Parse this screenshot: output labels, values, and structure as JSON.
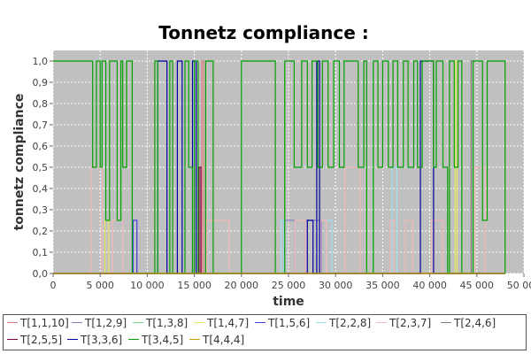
{
  "chart_data": {
    "type": "line",
    "title": "Tonnetz compliance :",
    "xlabel": "time",
    "ylabel": "tonnetz compliance",
    "xlim": [
      0,
      50000
    ],
    "ylim": [
      0,
      1.05
    ],
    "grid": true,
    "background": "#c0c0c0",
    "x_ticks": [
      0,
      5000,
      10000,
      15000,
      20000,
      25000,
      30000,
      35000,
      40000,
      45000,
      50000
    ],
    "x_tick_labels": [
      "0",
      "5 000",
      "10 000",
      "15 000",
      "20 000",
      "25 000",
      "30 000",
      "35 000",
      "40 000",
      "45 000",
      "50 000"
    ],
    "y_ticks": [
      0,
      0.1,
      0.2,
      0.3,
      0.4,
      0.5,
      0.6,
      0.7,
      0.8,
      0.9,
      1.0
    ],
    "y_tick_labels": [
      "0,0",
      "0,1",
      "0,2",
      "0,3",
      "0,4",
      "0,5",
      "0,6",
      "0,7",
      "0,8",
      "0,9",
      "1,0"
    ],
    "legend_position": "bottom",
    "series": [
      {
        "name": "T[1,1,10]",
        "color": "#e08080",
        "points": [
          [
            0,
            0
          ],
          [
            15800,
            0
          ],
          [
            15800,
            1.0
          ],
          [
            16000,
            1.0
          ],
          [
            16000,
            0
          ],
          [
            48000,
            0
          ]
        ]
      },
      {
        "name": "T[1,2,9]",
        "color": "#8080c0",
        "points": [
          [
            0,
            0
          ],
          [
            24500,
            0
          ],
          [
            24500,
            0.25
          ],
          [
            25700,
            0.25
          ],
          [
            25700,
            0
          ],
          [
            26800,
            0
          ],
          [
            26800,
            0.25
          ],
          [
            28500,
            0.25
          ],
          [
            28500,
            0
          ],
          [
            48000,
            0
          ]
        ]
      },
      {
        "name": "T[1,3,8]",
        "color": "#7ad07a",
        "points": [
          [
            0,
            0
          ],
          [
            48000,
            0
          ]
        ]
      },
      {
        "name": "T[1,4,7]",
        "color": "#e8e860",
        "points": [
          [
            0,
            0
          ],
          [
            5500,
            0
          ],
          [
            5500,
            0.25
          ],
          [
            5900,
            0.25
          ],
          [
            5900,
            0
          ],
          [
            42700,
            0
          ],
          [
            42700,
            1.0
          ],
          [
            42900,
            1.0
          ],
          [
            42900,
            0
          ],
          [
            48000,
            0
          ]
        ]
      },
      {
        "name": "T[1,5,6]",
        "color": "#4040e0",
        "points": [
          [
            0,
            0
          ],
          [
            8500,
            0
          ],
          [
            8500,
            0.25
          ],
          [
            8900,
            0.25
          ],
          [
            8900,
            0
          ],
          [
            48000,
            0
          ]
        ]
      },
      {
        "name": "T[2,2,8]",
        "color": "#a0e0f0",
        "points": [
          [
            0,
            0
          ],
          [
            24200,
            0
          ],
          [
            24200,
            0.25
          ],
          [
            24500,
            0.25
          ],
          [
            24500,
            0
          ],
          [
            29000,
            0
          ],
          [
            29000,
            0.25
          ],
          [
            29600,
            0.25
          ],
          [
            29600,
            0
          ],
          [
            36000,
            0
          ],
          [
            36000,
            0.5
          ],
          [
            36500,
            0.5
          ],
          [
            36500,
            0
          ],
          [
            48000,
            0
          ]
        ]
      },
      {
        "name": "T[2,3,7]",
        "color": "#f0b8b8",
        "points": [
          [
            0,
            0
          ],
          [
            4000,
            0
          ],
          [
            4000,
            0.5
          ],
          [
            5200,
            0.5
          ],
          [
            5200,
            0
          ],
          [
            6300,
            0
          ],
          [
            6300,
            0.25
          ],
          [
            7400,
            0.25
          ],
          [
            7400,
            0
          ],
          [
            16300,
            0
          ],
          [
            16300,
            0.25
          ],
          [
            18700,
            0.25
          ],
          [
            18700,
            0
          ],
          [
            25700,
            0
          ],
          [
            25700,
            0.25
          ],
          [
            26800,
            0.25
          ],
          [
            26800,
            0
          ],
          [
            28400,
            0
          ],
          [
            28400,
            0.25
          ],
          [
            29000,
            0.25
          ],
          [
            29000,
            0
          ],
          [
            31000,
            0
          ],
          [
            31000,
            0.5
          ],
          [
            32600,
            0.5
          ],
          [
            32600,
            0
          ],
          [
            35800,
            0
          ],
          [
            35800,
            0.25
          ],
          [
            36200,
            0.25
          ],
          [
            36200,
            0
          ],
          [
            37400,
            0
          ],
          [
            37400,
            0.25
          ],
          [
            38200,
            0.25
          ],
          [
            38200,
            0
          ],
          [
            40200,
            0
          ],
          [
            40200,
            0.25
          ],
          [
            41400,
            0.25
          ],
          [
            41400,
            0
          ],
          [
            44800,
            0
          ],
          [
            44800,
            0.5
          ],
          [
            45900,
            0.5
          ],
          [
            45900,
            0
          ],
          [
            48000,
            0
          ]
        ]
      },
      {
        "name": "T[2,4,6]",
        "color": "#808080",
        "points": [
          [
            0,
            0
          ],
          [
            44400,
            0
          ],
          [
            44400,
            1.0
          ],
          [
            44600,
            1.0
          ],
          [
            44600,
            0
          ],
          [
            48000,
            0
          ]
        ]
      },
      {
        "name": "T[2,5,5]",
        "color": "#800040",
        "points": [
          [
            0,
            0
          ],
          [
            15500,
            0
          ],
          [
            15500,
            0.5
          ],
          [
            15700,
            0.5
          ],
          [
            15700,
            0
          ],
          [
            48000,
            0
          ]
        ]
      },
      {
        "name": "T[3,3,6]",
        "color": "#0000a0",
        "points": [
          [
            0,
            0
          ],
          [
            11100,
            0
          ],
          [
            11100,
            1.0
          ],
          [
            12100,
            1.0
          ],
          [
            12100,
            0
          ],
          [
            13200,
            0
          ],
          [
            13200,
            1.0
          ],
          [
            13700,
            1.0
          ],
          [
            13700,
            0
          ],
          [
            14800,
            0
          ],
          [
            14800,
            1.0
          ],
          [
            15200,
            1.0
          ],
          [
            15200,
            0
          ],
          [
            27000,
            0
          ],
          [
            27000,
            0.25
          ],
          [
            27600,
            0.25
          ],
          [
            27600,
            0
          ],
          [
            28000,
            0
          ],
          [
            28000,
            1.0
          ],
          [
            28300,
            1.0
          ],
          [
            28300,
            0
          ],
          [
            39000,
            0
          ],
          [
            39000,
            1.0
          ],
          [
            40400,
            1.0
          ],
          [
            40400,
            0
          ],
          [
            48000,
            0
          ]
        ]
      },
      {
        "name": "T[3,4,5]",
        "color": "#00a000",
        "points": [
          [
            0,
            1.0
          ],
          [
            4200,
            1.0
          ],
          [
            4200,
            0.5
          ],
          [
            4600,
            0.5
          ],
          [
            4600,
            1.0
          ],
          [
            5000,
            1.0
          ],
          [
            5000,
            0.5
          ],
          [
            5200,
            0.5
          ],
          [
            5200,
            1.0
          ],
          [
            5600,
            1.0
          ],
          [
            5600,
            0.25
          ],
          [
            6000,
            0.25
          ],
          [
            6000,
            1.0
          ],
          [
            6800,
            1.0
          ],
          [
            6800,
            0.25
          ],
          [
            7200,
            0.25
          ],
          [
            7200,
            1.0
          ],
          [
            7400,
            1.0
          ],
          [
            7400,
            0.5
          ],
          [
            7800,
            0.5
          ],
          [
            7800,
            1.0
          ],
          [
            8400,
            1.0
          ],
          [
            8400,
            0
          ],
          [
            10800,
            0
          ],
          [
            10800,
            1.0
          ],
          [
            11100,
            1.0
          ],
          [
            11100,
            0
          ],
          [
            12400,
            0
          ],
          [
            12400,
            1.0
          ],
          [
            12700,
            1.0
          ],
          [
            12700,
            0
          ],
          [
            14000,
            0
          ],
          [
            14000,
            1.0
          ],
          [
            14400,
            1.0
          ],
          [
            14400,
            0.5
          ],
          [
            14800,
            0.5
          ],
          [
            14800,
            0
          ],
          [
            15000,
            0
          ],
          [
            15000,
            1.0
          ],
          [
            15400,
            1.0
          ],
          [
            15400,
            0
          ],
          [
            16200,
            0
          ],
          [
            16200,
            1.0
          ],
          [
            17000,
            1.0
          ],
          [
            17000,
            0
          ],
          [
            20000,
            0
          ],
          [
            20000,
            1.0
          ],
          [
            23600,
            1.0
          ],
          [
            23600,
            0
          ],
          [
            24600,
            0
          ],
          [
            24600,
            1.0
          ],
          [
            25600,
            1.0
          ],
          [
            25600,
            0.5
          ],
          [
            26400,
            0.5
          ],
          [
            26400,
            1.0
          ],
          [
            27000,
            1.0
          ],
          [
            27000,
            0.5
          ],
          [
            27500,
            0.5
          ],
          [
            27500,
            1.0
          ],
          [
            28100,
            1.0
          ],
          [
            28100,
            0.5
          ],
          [
            28600,
            0.5
          ],
          [
            28600,
            1.0
          ],
          [
            29200,
            1.0
          ],
          [
            29200,
            0.5
          ],
          [
            29800,
            0.5
          ],
          [
            29800,
            1.0
          ],
          [
            30400,
            1.0
          ],
          [
            30400,
            0.5
          ],
          [
            30900,
            0.5
          ],
          [
            30900,
            1.0
          ],
          [
            32400,
            1.0
          ],
          [
            32400,
            0.5
          ],
          [
            33000,
            0.5
          ],
          [
            33000,
            1.0
          ],
          [
            33300,
            1.0
          ],
          [
            33300,
            0
          ],
          [
            34000,
            0
          ],
          [
            34000,
            1.0
          ],
          [
            34500,
            1.0
          ],
          [
            34500,
            0.5
          ],
          [
            35000,
            0.5
          ],
          [
            35000,
            1.0
          ],
          [
            35600,
            1.0
          ],
          [
            35600,
            0.5
          ],
          [
            36100,
            0.5
          ],
          [
            36100,
            1.0
          ],
          [
            36600,
            1.0
          ],
          [
            36600,
            0.5
          ],
          [
            37200,
            0.5
          ],
          [
            37200,
            1.0
          ],
          [
            37700,
            1.0
          ],
          [
            37700,
            0.5
          ],
          [
            38300,
            0.5
          ],
          [
            38300,
            1.0
          ],
          [
            38700,
            1.0
          ],
          [
            38700,
            0.5
          ],
          [
            39200,
            0.5
          ],
          [
            39200,
            1.0
          ],
          [
            40400,
            1.0
          ],
          [
            40400,
            0.5
          ],
          [
            40700,
            0.5
          ],
          [
            40700,
            1.0
          ],
          [
            41400,
            1.0
          ],
          [
            41400,
            0.5
          ],
          [
            41900,
            0.5
          ],
          [
            41900,
            0
          ],
          [
            42100,
            0
          ],
          [
            42100,
            1.0
          ],
          [
            42600,
            1.0
          ],
          [
            42600,
            0.5
          ],
          [
            43000,
            0.5
          ],
          [
            43000,
            1.0
          ],
          [
            43400,
            1.0
          ],
          [
            43400,
            0
          ],
          [
            44600,
            0
          ],
          [
            44600,
            1.0
          ],
          [
            45600,
            1.0
          ],
          [
            45600,
            0.25
          ],
          [
            46100,
            0.25
          ],
          [
            46100,
            1.0
          ],
          [
            48000,
            1.0
          ],
          [
            48000,
            0
          ]
        ]
      },
      {
        "name": "T[4,4,4]",
        "color": "#c0a000",
        "points": [
          [
            0,
            0
          ],
          [
            48000,
            0
          ]
        ]
      }
    ]
  }
}
